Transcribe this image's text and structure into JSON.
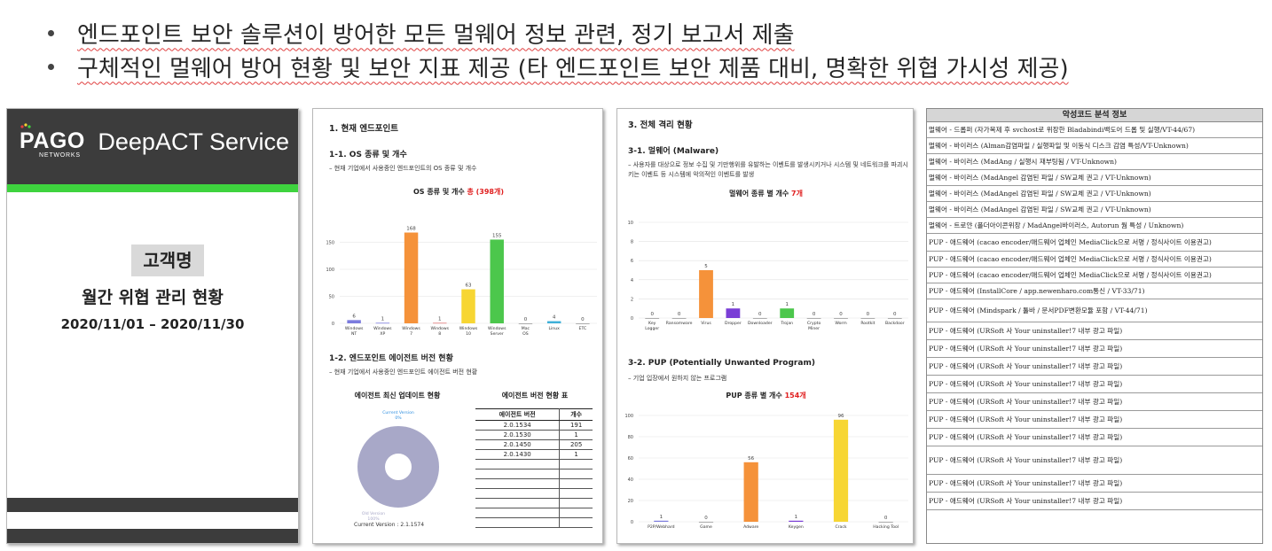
{
  "bullets": [
    "엔드포인트 보안 솔루션이 방어한 모든 멀웨어 정보 관련, 정기 보고서 제출",
    "구체적인 멀웨어 방어 현황 및 보안 지표 제공 (타 엔드포인트 보안 제품 대비, 명확한 위협 가시성 제공)"
  ],
  "cover": {
    "logo_main": "PAGO",
    "logo_sub": "NETWORKS",
    "service": "DeepACT Service",
    "customer": "고객명",
    "title": "월간 위협 관리 현황",
    "date": "2020/11/01 – 2020/11/30",
    "colors": {
      "dark": "#3c3c3c",
      "green": "#3ed33e"
    }
  },
  "page2": {
    "section": "1. 현재 엔드포인트",
    "sub1": "1-1. OS 종류 및 개수",
    "note1": "– 현재 기업에서 사용중인 엔드포인트의 OS 종류 및 개수",
    "chart1_title": "OS 종류 및 개수",
    "chart1_total": "총 (398개)",
    "sub2": "1-2. 엔드포인트 에이전트 버전 현황",
    "note2": "– 현재 기업에서 사용중인 엔드포인트 에이전트 버전 현황",
    "pie_title": "에이전트 최신 업데이트 현황",
    "table_title": "에이전트 버전 현황 표",
    "table_headers": [
      "에이전트 버전",
      "개수"
    ],
    "table_rows": [
      [
        "2.0.1534",
        "191"
      ],
      [
        "2.0.1530",
        "1"
      ],
      [
        "2.0.1450",
        "205"
      ],
      [
        "2.0.1430",
        "1"
      ],
      [
        "",
        ""
      ],
      [
        "",
        ""
      ],
      [
        "",
        ""
      ],
      [
        "",
        ""
      ],
      [
        "",
        ""
      ],
      [
        "",
        ""
      ],
      [
        "",
        ""
      ]
    ],
    "current_version": "Current Version : 2.1.1574"
  },
  "page3": {
    "section": "3. 전체 격리 현황",
    "sub1": "3-1. 멀웨어 (Malware)",
    "note1": "– 사용자를 대상으로 정보 수집 및 기만행위를 유발하는 이벤트를 발생시키거나 시스템 및 네트워크를 파괴시키는 이벤트 등 시스템에 악의적인 이벤트를 발생",
    "chart1_title": "멀웨어 종류 별 개수",
    "chart1_total": "7개",
    "sub2": "3-2. PUP (Potentially Unwanted Program)",
    "note2": "– 기업 입장에서 원하지 않는 프로그램",
    "chart2_title": "PUP 종류 별 개수",
    "chart2_total": "154개"
  },
  "chart_data": [
    {
      "type": "bar",
      "categories": [
        "Windows NT",
        "Windows XP",
        "Windows 7",
        "Windows 8",
        "Windows 10",
        "Windows Server",
        "Mac OS",
        "Linux",
        "ETC"
      ],
      "values": [
        6,
        1,
        168,
        1,
        63,
        155,
        0,
        4,
        0
      ],
      "colors": [
        "#7b7bde",
        "#7b7bde",
        "#f5923a",
        "#e07878",
        "#f7d633",
        "#4cc74c",
        "#999999",
        "#3fb0d8",
        "#999999"
      ],
      "ylim": [
        0,
        200
      ],
      "yticks": [
        0,
        50,
        100,
        150
      ],
      "grid": true
    },
    {
      "type": "pie",
      "labels": [
        "Current Version",
        "Old Version"
      ],
      "values": [
        0,
        100
      ],
      "label_values": [
        "0%",
        "100%"
      ],
      "colors": [
        "#2f8fe0",
        "#a8a8c8"
      ]
    },
    {
      "type": "bar",
      "categories": [
        "Key Logger",
        "Ransomware",
        "Virus",
        "Dropper",
        "Downloader",
        "Trojan",
        "Crypto Miner",
        "Worm",
        "Rootkit",
        "Backdoor"
      ],
      "values": [
        0,
        0,
        5,
        1,
        0,
        1,
        0,
        0,
        0,
        0
      ],
      "colors": [
        "#999999",
        "#999999",
        "#f5923a",
        "#7a3ed6",
        "#999999",
        "#4cc74c",
        "#999999",
        "#999999",
        "#999999",
        "#999999"
      ],
      "ylim": [
        0,
        10
      ],
      "yticks": [
        0,
        2,
        4,
        6,
        8,
        10
      ],
      "grid": true
    },
    {
      "type": "bar",
      "categories": [
        "P2P/Webhard",
        "Game",
        "Adware",
        "Keygen",
        "Crack",
        "Hacking Tool"
      ],
      "values": [
        1,
        0,
        56,
        1,
        96,
        0
      ],
      "colors": [
        "#7b7bde",
        "#999999",
        "#f5923a",
        "#7a3ed6",
        "#f7d633",
        "#999999"
      ],
      "ylim": [
        0,
        100
      ],
      "yticks": [
        0,
        20,
        40,
        60,
        80,
        100
      ],
      "grid": true
    }
  ],
  "analysis": {
    "title": "악성코드 분석 정보",
    "rows": [
      "멀웨어 - 드롭퍼 (자가복제 후 svchost로 위장한 Bladabindi백도어 드롭 및 실행/VT-44/67)",
      "멀웨어 - 바이러스 (Alman감염파일 / 실행파일 및 이동식 디스크 감염 특성/VT-Unknown)",
      "멀웨어 - 바이러스 (MadAng / 실행시 재부팅됨 / VT-Unknown)",
      "멀웨어 - 바이러스 (MadAngel 감염된 파일 / SW교체 권고 / VT-Unknown)",
      "멀웨어 - 바이러스 (MadAngel 감염된 파일 / SW교체 권고 / VT-Unknown)",
      "멀웨어 - 바이러스 (MadAngel 감염된 파일 / SW교체 권고 / VT-Unknown)",
      "멀웨어 - 트로얀 (폴더아이콘위장 / MadAngel바이러스, Autorun 웜 특성 / Unknown)",
      "PUP - 애드웨어 (cacao encoder/애드웨어 업체인 MediaClick으로 서명 / 정식사이트 이용권고)",
      "PUP - 애드웨어 (cacao encoder/애드웨어 업체인 MediaClick으로 서명 / 정식사이트 이용권고)",
      "PUP - 애드웨어 (cacao encoder/애드웨어 업체인 MediaClick으로 서명 / 정식사이트 이용권고)",
      "PUP - 애드웨어 (InstallCore / app.newenharo.com통신 / VT-33/71)",
      "PUP - 애드웨어 (Mindspark / 툴바 / 문서PDF변환모듈 포함 / VT-44/71)",
      "PUP - 애드웨어 (URSoft 사 Your uninstaller!7 내부 광고 파일)",
      "PUP - 애드웨어 (URSoft 사 Your uninstaller!7 내부 광고 파일)",
      "PUP - 애드웨어 (URSoft 사 Your uninstaller!7 내부 광고 파일)",
      "PUP - 애드웨어 (URSoft 사 Your uninstaller!7 내부 광고 파일)",
      "PUP - 애드웨어 (URSoft 사 Your uninstaller!7 내부 광고 파일)",
      "PUP - 애드웨어 (URSoft 사 Your uninstaller!7 내부 광고 파일)",
      "PUP - 애드웨어 (URSoft 사 Your uninstaller!7 내부 광고 파일)",
      "PUP - 애드웨어 (URSoft 사 Your uninstaller!7 내부 광고 파일)",
      "PUP - 애드웨어 (URSoft 사 Your uninstaller!7 내부 광고 파일)",
      "PUP - 애드웨어 (URSoft 사 Your uninstaller!7 내부 광고 파일)"
    ]
  }
}
